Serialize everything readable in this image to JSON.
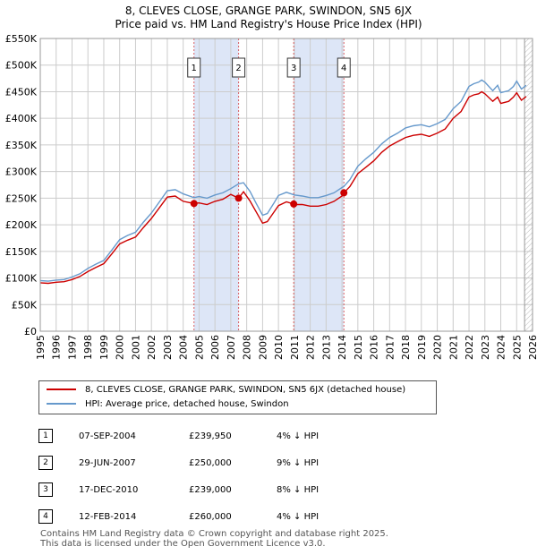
{
  "title_line1": "8, CLEVES CLOSE, GRANGE PARK, SWINDON, SN5 6JX",
  "title_line2": "Price paid vs. HM Land Registry's House Price Index (HPI)",
  "colors": {
    "price": "#cc0000",
    "hpi": "#6699cc",
    "shade": "#dde6f7",
    "grid": "#cccccc"
  },
  "chart_data": {
    "type": "line",
    "title": "Price paid vs. HM Land Registry's House Price Index (HPI)",
    "xlim": [
      1995,
      2026
    ],
    "ylim": [
      0,
      550000
    ],
    "x_ticks": [
      "1995",
      "1996",
      "1997",
      "1998",
      "1999",
      "2000",
      "2001",
      "2002",
      "2003",
      "2004",
      "2005",
      "2006",
      "2007",
      "2008",
      "2009",
      "2010",
      "2011",
      "2012",
      "2013",
      "2014",
      "2015",
      "2016",
      "2017",
      "2018",
      "2019",
      "2020",
      "2021",
      "2022",
      "2023",
      "2024",
      "2025",
      "2026"
    ],
    "y_ticks": [
      {
        "value": 0,
        "label": "£0"
      },
      {
        "value": 50000,
        "label": "£50K"
      },
      {
        "value": 100000,
        "label": "£100K"
      },
      {
        "value": 150000,
        "label": "£150K"
      },
      {
        "value": 200000,
        "label": "£200K"
      },
      {
        "value": 250000,
        "label": "£250K"
      },
      {
        "value": 300000,
        "label": "£300K"
      },
      {
        "value": 350000,
        "label": "£350K"
      },
      {
        "value": 400000,
        "label": "£400K"
      },
      {
        "value": 450000,
        "label": "£450K"
      },
      {
        "value": 500000,
        "label": "£500K"
      },
      {
        "value": 550000,
        "label": "£550K"
      }
    ],
    "series": [
      {
        "name": "HPI: Average price, detached house, Swindon",
        "color": "#6699cc",
        "x": [
          1995,
          1995.5,
          1996,
          1996.5,
          1997,
          1997.5,
          1998,
          1998.5,
          1999,
          1999.5,
          2000,
          2000.5,
          2001,
          2001.5,
          2002,
          2002.5,
          2003,
          2003.5,
          2004,
          2004.5,
          2004.68,
          2005,
          2005.5,
          2006,
          2006.5,
          2007,
          2007.5,
          2007.8,
          2008.2,
          2008.6,
          2009,
          2009.3,
          2009.7,
          2010,
          2010.5,
          2011,
          2011.5,
          2012,
          2012.5,
          2013,
          2013.5,
          2014,
          2014.12,
          2014.5,
          2015,
          2015.5,
          2016,
          2016.5,
          2017,
          2017.5,
          2018,
          2018.5,
          2019,
          2019.5,
          2020,
          2020.5,
          2021,
          2021.5,
          2022,
          2022.3,
          2022.6,
          2022.8,
          2023,
          2023.5,
          2023.8,
          2024,
          2024.5,
          2024.8,
          2025,
          2025.3,
          2025.6
        ],
        "values": [
          95000,
          94000,
          96000,
          97000,
          102000,
          108000,
          118000,
          126000,
          133000,
          152000,
          172000,
          180000,
          186000,
          205000,
          222000,
          243000,
          264000,
          266000,
          258000,
          253000,
          251000,
          253000,
          250000,
          256000,
          260000,
          268000,
          277000,
          279000,
          263000,
          240000,
          218000,
          221000,
          240000,
          255000,
          261000,
          256000,
          254000,
          251000,
          251000,
          255000,
          260000,
          270000,
          272000,
          285000,
          310000,
          324000,
          336000,
          352000,
          364000,
          372000,
          382000,
          386000,
          388000,
          384000,
          390000,
          398000,
          418000,
          432000,
          460000,
          465000,
          468000,
          472000,
          468000,
          452000,
          462000,
          448000,
          452000,
          460000,
          470000,
          455000,
          462000
        ]
      },
      {
        "name": "8, CLEVES CLOSE, GRANGE PARK, SWINDON, SN5 6JX (detached house)",
        "color": "#cc0000",
        "x": [
          1995,
          1995.5,
          1996,
          1996.5,
          1997,
          1997.5,
          1998,
          1998.5,
          1999,
          1999.5,
          2000,
          2000.5,
          2001,
          2001.5,
          2002,
          2002.5,
          2003,
          2003.5,
          2004,
          2004.5,
          2004.68,
          2005,
          2005.5,
          2006,
          2006.5,
          2007,
          2007.49,
          2007.8,
          2008.2,
          2008.6,
          2009,
          2009.3,
          2009.7,
          2010,
          2010.5,
          2010.96,
          2011,
          2011.5,
          2012,
          2012.5,
          2013,
          2013.5,
          2014,
          2014.12,
          2014.5,
          2015,
          2015.5,
          2016,
          2016.5,
          2017,
          2017.5,
          2018,
          2018.5,
          2019,
          2019.5,
          2020,
          2020.5,
          2021,
          2021.5,
          2022,
          2022.3,
          2022.6,
          2022.8,
          2023,
          2023.5,
          2023.8,
          2024,
          2024.5,
          2024.8,
          2025,
          2025.3,
          2025.6
        ],
        "values": [
          91000,
          90000,
          92000,
          93000,
          97000,
          103000,
          112000,
          120000,
          127000,
          145000,
          164000,
          171000,
          177000,
          195000,
          212000,
          232000,
          252000,
          254000,
          244000,
          241000,
          239950,
          241000,
          238000,
          244000,
          248000,
          257000,
          250000,
          262000,
          245000,
          224000,
          203000,
          206000,
          223000,
          236000,
          243000,
          239000,
          238000,
          238000,
          235000,
          235000,
          238000,
          244000,
          254000,
          260000,
          272000,
          296000,
          308000,
          320000,
          336000,
          348000,
          356000,
          364000,
          368000,
          370000,
          366000,
          372000,
          380000,
          400000,
          413000,
          440000,
          444000,
          446000,
          450000,
          446000,
          432000,
          440000,
          428000,
          432000,
          440000,
          448000,
          434000,
          441000
        ]
      }
    ],
    "sales": [
      {
        "label": "1",
        "x": 2004.68,
        "y": 239950
      },
      {
        "label": "2",
        "x": 2007.49,
        "y": 250000
      },
      {
        "label": "3",
        "x": 2010.96,
        "y": 239000
      },
      {
        "label": "4",
        "x": 2014.12,
        "y": 260000
      }
    ],
    "shaded_ranges": [
      [
        2004.68,
        2007.49
      ],
      [
        2010.96,
        2014.12
      ]
    ],
    "hatched_from": 2025.5
  },
  "legend": {
    "price_label": "8, CLEVES CLOSE, GRANGE PARK, SWINDON, SN5 6JX (detached house)",
    "hpi_label": "HPI: Average price, detached house, Swindon"
  },
  "transactions": [
    {
      "num": "1",
      "date": "07-SEP-2004",
      "price": "£239,950",
      "hpi": "4% ↓ HPI"
    },
    {
      "num": "2",
      "date": "29-JUN-2007",
      "price": "£250,000",
      "hpi": "9% ↓ HPI"
    },
    {
      "num": "3",
      "date": "17-DEC-2010",
      "price": "£239,000",
      "hpi": "8% ↓ HPI"
    },
    {
      "num": "4",
      "date": "12-FEB-2014",
      "price": "£260,000",
      "hpi": "4% ↓ HPI"
    }
  ],
  "footer": {
    "line1": "Contains HM Land Registry data © Crown copyright and database right 2025.",
    "line2": "This data is licensed under the Open Government Licence v3.0."
  }
}
